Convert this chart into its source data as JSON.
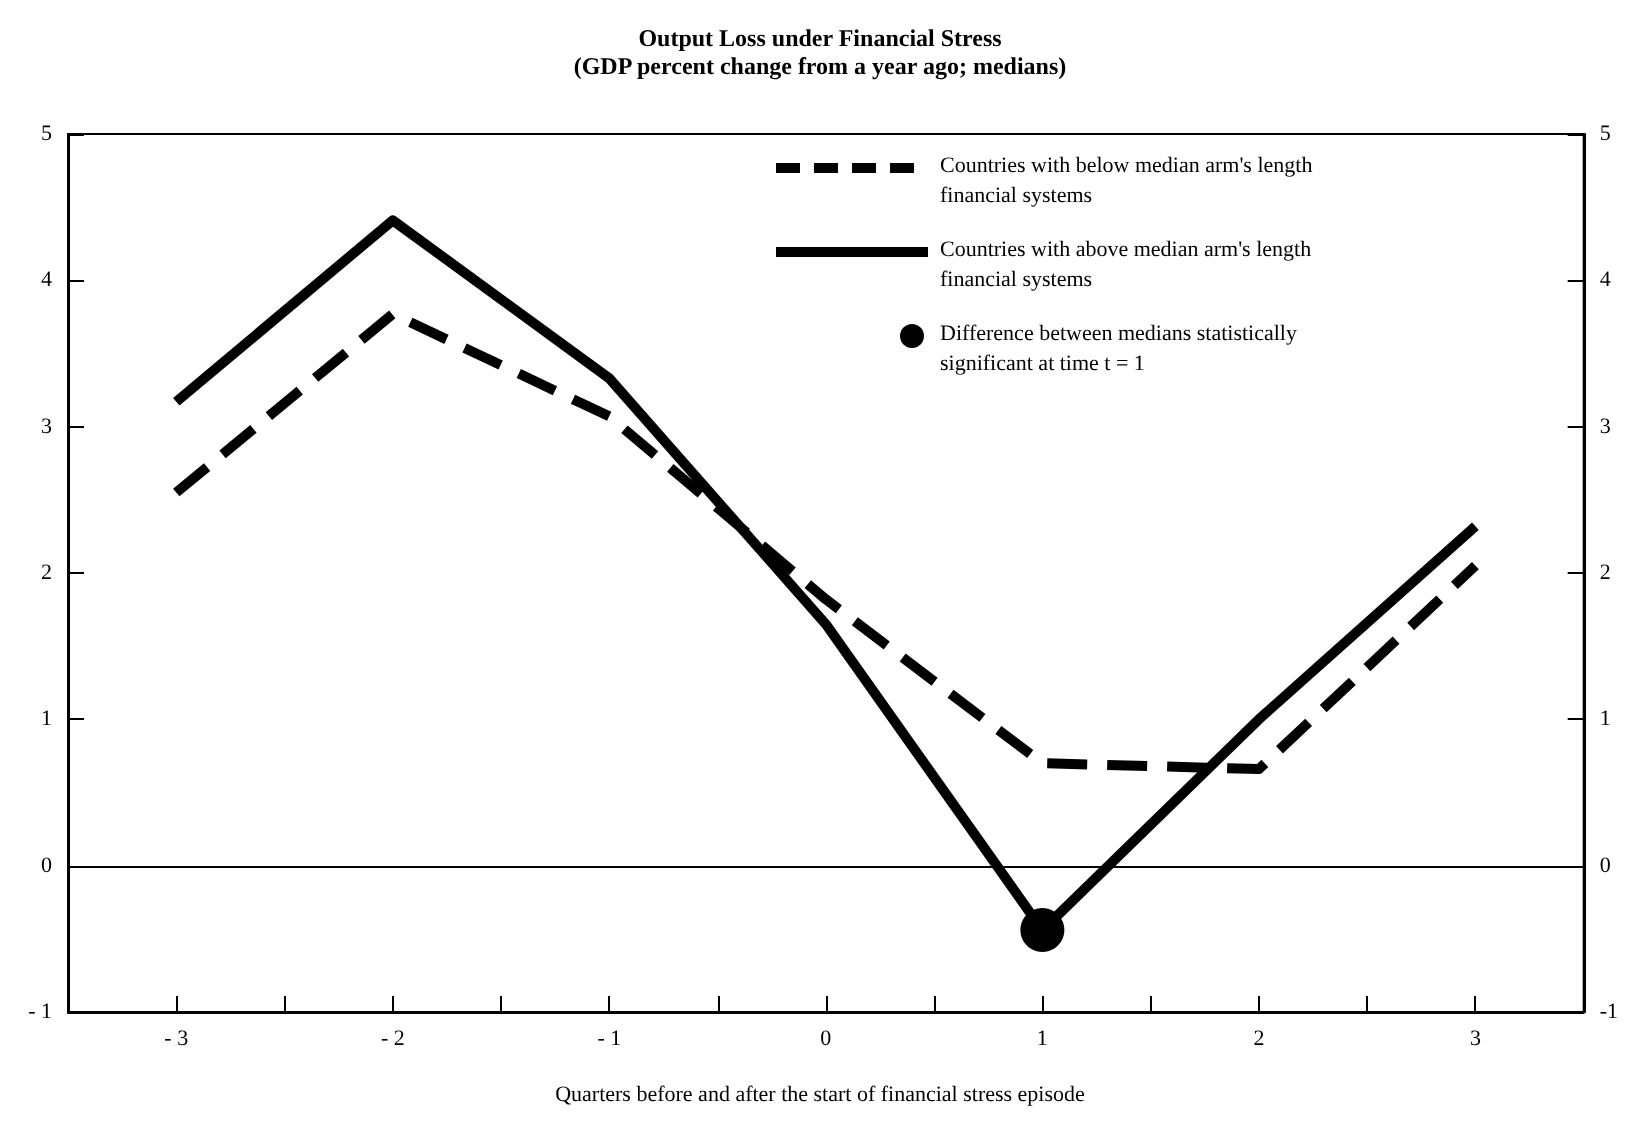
{
  "chart_data": {
    "type": "line",
    "title": "Output Loss under Financial Stress",
    "subtitle": "(GDP percent change from a year ago; medians)",
    "xlabel": "Quarters before and after the start of financial stress episode",
    "x": [
      -3,
      -2,
      -1,
      0,
      1,
      2,
      3
    ],
    "series": [
      {
        "name": "Countries with below median arm's length financial systems",
        "color": "#000000",
        "line_style": "dashed",
        "values": [
          2.55,
          3.77,
          3.07,
          1.82,
          0.7,
          0.66,
          2.05
        ]
      },
      {
        "name": "Countries with above median arm's length financial systems",
        "color": "#000000",
        "line_style": "solid",
        "values": [
          3.17,
          4.41,
          3.33,
          1.65,
          -0.44,
          1.0,
          2.32
        ]
      },
      {
        "name": "Difference between medians statistically significant at time t = 1",
        "type": "scatter",
        "marker": "circle",
        "color": "#000000",
        "x": [
          1
        ],
        "values": [
          -0.44
        ]
      }
    ],
    "marker": "none",
    "xlim": [
      -3.5,
      3.5
    ],
    "xticks": [
      {
        "value": -3,
        "label": "- 3"
      },
      {
        "value": -2.5,
        "label": null
      },
      {
        "value": -2,
        "label": "- 2"
      },
      {
        "value": -1.5,
        "label": null
      },
      {
        "value": -1,
        "label": "- 1"
      },
      {
        "value": -0.5,
        "label": null
      },
      0,
      {
        "value": 0.5,
        "label": null
      },
      1,
      {
        "value": 1.5,
        "label": null
      },
      2,
      {
        "value": 2.5,
        "label": null
      },
      3
    ],
    "ylim": [
      -1,
      5
    ],
    "yticks": [
      {
        "value": -1,
        "label": "- 1"
      },
      0,
      1,
      2,
      3,
      4,
      5
    ],
    "y2lim": [
      -1,
      5
    ],
    "y2ticks": [
      -1,
      0,
      1,
      2,
      3,
      4,
      5
    ],
    "ref_lines": [
      {
        "axis": "y",
        "value": 0
      }
    ],
    "grid": false,
    "legend": "top right"
  }
}
